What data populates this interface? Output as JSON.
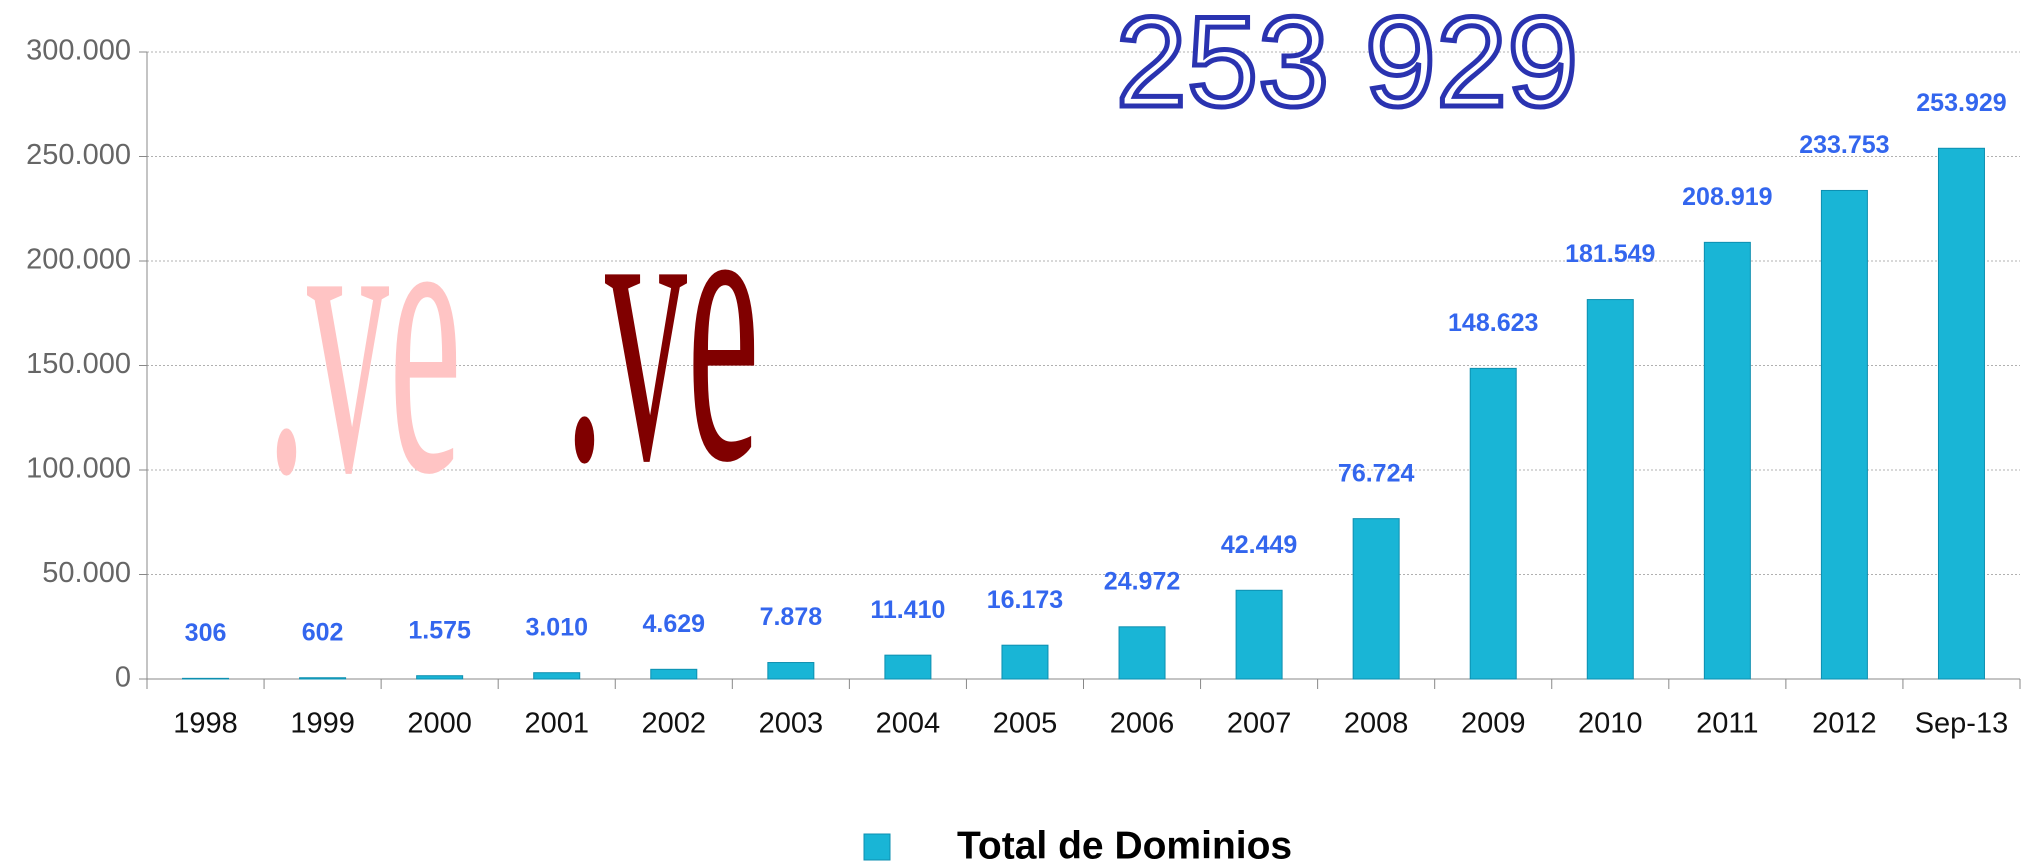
{
  "chart_data": {
    "type": "bar",
    "categories": [
      "1998",
      "1999",
      "2000",
      "2001",
      "2002",
      "2003",
      "2004",
      "2005",
      "2006",
      "2007",
      "2008",
      "2009",
      "2010",
      "2011",
      "2012",
      "Sep-13"
    ],
    "series": [
      {
        "name": "Total de Dominios",
        "color": "#19b5d6",
        "values": [
          306,
          602,
          1575,
          3010,
          4629,
          7878,
          11410,
          16173,
          24972,
          42449,
          76724,
          148623,
          181549,
          208919,
          233753,
          253929
        ],
        "value_labels": [
          "306",
          "602",
          "1.575",
          "3.010",
          "4.629",
          "7.878",
          "11.410",
          "16.173",
          "24.972",
          "42.449",
          "76.724",
          "148.623",
          "181.549",
          "208.919",
          "233.753",
          "253.929"
        ]
      }
    ],
    "ylim": [
      0,
      300000
    ],
    "yticks": [
      0,
      {
        "value": 50000,
        "label": "50.000"
      },
      {
        "value": 100000,
        "label": "100.000"
      },
      {
        "value": 150000,
        "label": "150.000"
      },
      {
        "value": 200000,
        "label": "200.000"
      },
      {
        "value": 250000,
        "label": "250.000"
      },
      {
        "value": 300000,
        "label": "300.000"
      }
    ],
    "grid": true,
    "legend": "bottom",
    "annotations": [
      "253 929",
      ".ve",
      ".ve"
    ]
  }
}
